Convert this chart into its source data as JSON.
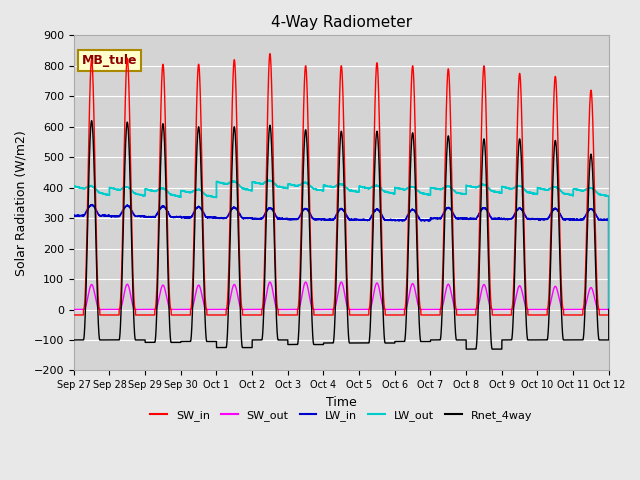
{
  "title": "4-Way Radiometer",
  "xlabel": "Time",
  "ylabel": "Solar Radiation (W/m2)",
  "ylim": [
    -200,
    900
  ],
  "background_color": "#e8e8e8",
  "plot_bg_color": "#d4d4d4",
  "grid_color": "#ffffff",
  "label_box": "MB_tule",
  "label_box_bg": "#ffffcc",
  "label_box_border": "#aa8800",
  "tick_labels": [
    "Sep 27",
    "Sep 28",
    "Sep 29",
    "Sep 30",
    "Oct 1",
    "Oct 2",
    "Oct 3",
    "Oct 4",
    "Oct 5",
    "Oct 6",
    "Oct 7",
    "Oct 8",
    "Oct 9",
    "Oct 10",
    "Oct 11",
    "Oct 12"
  ],
  "series": {
    "SW_in": {
      "color": "#ff0000",
      "lw": 1.0
    },
    "SW_out": {
      "color": "#ff00ff",
      "lw": 1.0
    },
    "LW_in": {
      "color": "#0000cc",
      "lw": 1.3
    },
    "LW_out": {
      "color": "#00cccc",
      "lw": 1.3
    },
    "Rnet_4way": {
      "color": "#000000",
      "lw": 1.0
    }
  },
  "n_days": 15,
  "day_peak_SW_in": [
    820,
    825,
    805,
    805,
    820,
    840,
    800,
    800,
    810,
    800,
    790,
    800,
    775,
    765,
    720
  ],
  "day_peak_SW_out": [
    82,
    83,
    80,
    80,
    82,
    90,
    90,
    90,
    87,
    85,
    83,
    82,
    78,
    76,
    72
  ],
  "day_LW_in_base": [
    308,
    306,
    304,
    302,
    300,
    298,
    296,
    295,
    294,
    293,
    299,
    298,
    297,
    296,
    295
  ],
  "day_LW_out_base": [
    392,
    388,
    385,
    382,
    406,
    410,
    401,
    396,
    391,
    388,
    388,
    393,
    389,
    386,
    383
  ],
  "day_LW_out_start": [
    405,
    400,
    395,
    390,
    420,
    418,
    412,
    408,
    404,
    400,
    400,
    407,
    403,
    399,
    396
  ],
  "day_LW_out_end": [
    375,
    373,
    370,
    368,
    390,
    398,
    390,
    385,
    380,
    376,
    378,
    382,
    378,
    375,
    372
  ],
  "day_peak_Rnet": [
    620,
    615,
    610,
    600,
    600,
    605,
    590,
    585,
    585,
    580,
    570,
    560,
    560,
    555,
    510
  ],
  "night_Rnet": [
    -100,
    -100,
    -108,
    -105,
    -125,
    -100,
    -115,
    -110,
    -110,
    -105,
    -100,
    -130,
    -100,
    -100,
    -100
  ]
}
